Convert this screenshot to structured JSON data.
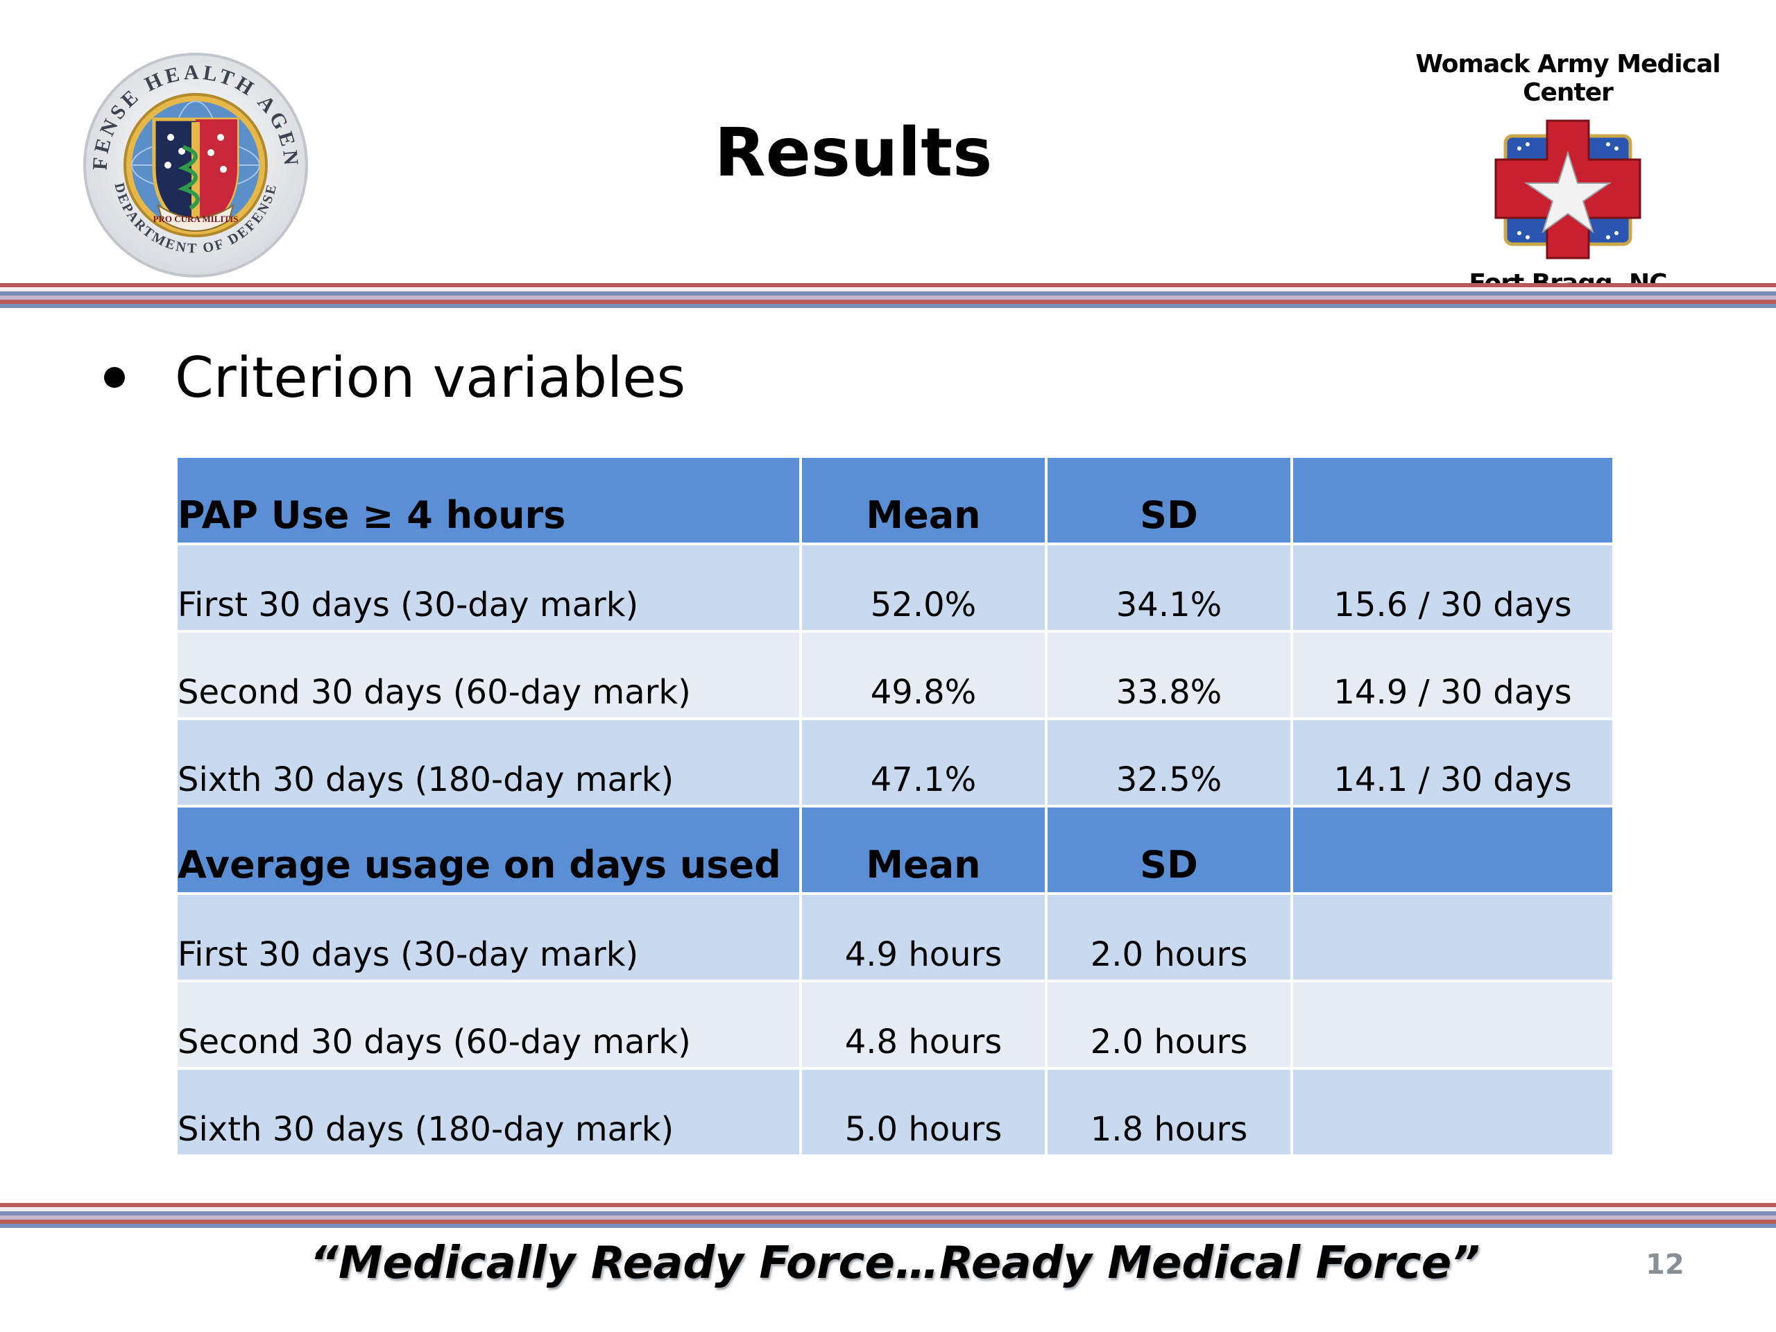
{
  "header": {
    "title": "Results",
    "left_logo": {
      "icon": "defense-health-agency-seal-icon",
      "ring_text_top": "DEFENSE HEALTH AGENCY",
      "ring_text_bottom": "DEPARTMENT OF DEFENSE",
      "motto": "PRO CURA MILITIS"
    },
    "right_logo": {
      "icon": "womack-army-medical-center-emblem-icon",
      "name": "Womack Army Medical Center",
      "location": "Fort Bragg, NC"
    }
  },
  "bullet": "Criterion variables",
  "table": {
    "sections": [
      {
        "header": [
          "PAP Use ≥ 4 hours",
          "Mean",
          "SD",
          ""
        ],
        "rows": [
          [
            "First 30 days (30-day mark)",
            "52.0%",
            "34.1%",
            "15.6 / 30 days"
          ],
          [
            "Second 30 days (60-day mark)",
            "49.8%",
            "33.8%",
            "14.9 / 30 days"
          ],
          [
            "Sixth 30 days (180-day mark)",
            "47.1%",
            "32.5%",
            "14.1 / 30 days"
          ]
        ]
      },
      {
        "header": [
          "Average usage on days used",
          "Mean",
          "SD",
          ""
        ],
        "rows": [
          [
            "First 30 days (30-day mark)",
            "4.9 hours",
            "2.0 hours",
            ""
          ],
          [
            "Second 30 days (60-day mark)",
            "4.8 hours",
            "2.0 hours",
            ""
          ],
          [
            "Sixth 30 days (180-day mark)",
            "5.0 hours",
            "1.8 hours",
            ""
          ]
        ]
      }
    ]
  },
  "footer": {
    "tagline": "“Medically Ready Force…Ready Medical Force”",
    "page_number": "12"
  },
  "colors": {
    "table_header": "#5b8fd5",
    "table_row_light": "#c9daf0",
    "table_row_pale": "#e8ecf5",
    "stripe_red": "#b85a5a",
    "stripe_blue": "#7b8eb8"
  }
}
